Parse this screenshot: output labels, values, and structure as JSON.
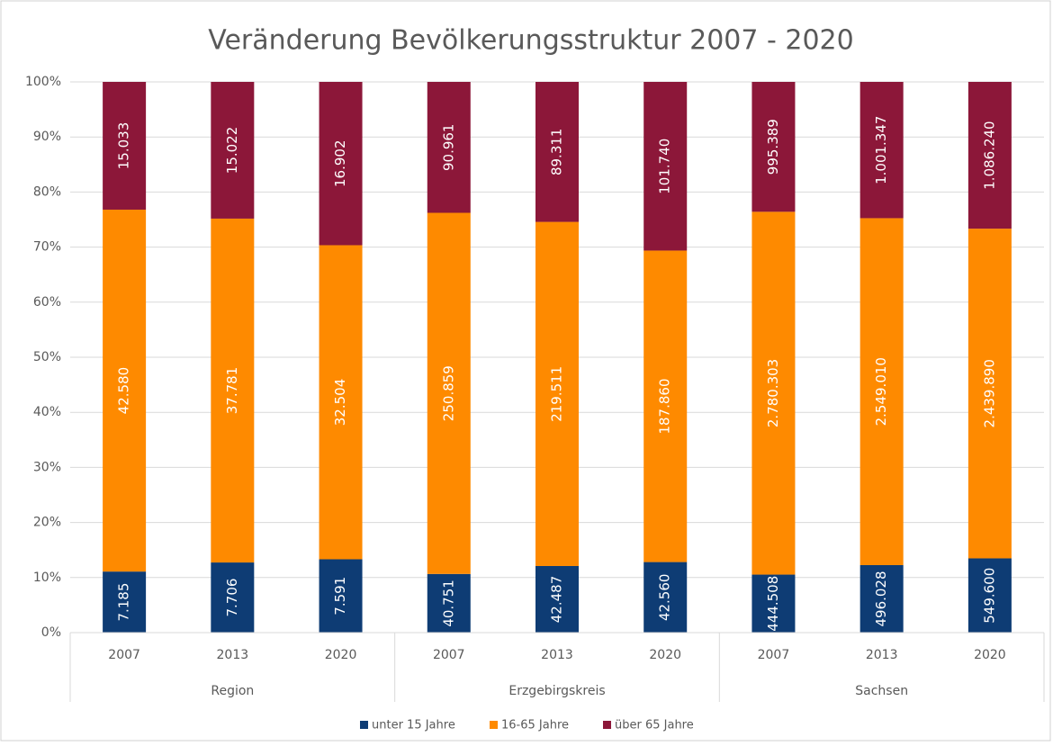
{
  "chart_data": {
    "type": "bar",
    "stacked": "percent",
    "title": "Veränderung Bevölkerungsstruktur 2007 - 2020",
    "categories": [
      "2007",
      "2013",
      "2020",
      "2007",
      "2013",
      "2020",
      "2007",
      "2013",
      "2020"
    ],
    "groups": [
      "Region",
      "Erzgebirgskreis",
      "Sachsen"
    ],
    "series": [
      {
        "name": "unter 15 Jahre",
        "color": "#0e3c74",
        "values": [
          7185,
          7706,
          7591,
          40751,
          42487,
          42560,
          444508,
          496028,
          549600
        ],
        "value_labels": [
          "7.185",
          "7.706",
          "7.591",
          "40.751",
          "42.487",
          "42.560",
          "444.508",
          "496.028",
          "549.600"
        ]
      },
      {
        "name": "16-65 Jahre",
        "color": "#fe8a00",
        "values": [
          42580,
          37781,
          32504,
          250859,
          219511,
          187860,
          2780303,
          2549010,
          2439890
        ],
        "value_labels": [
          "42.580",
          "37.781",
          "32.504",
          "250.859",
          "219.511",
          "187.860",
          "2.780.303",
          "2.549.010",
          "2.439.890"
        ]
      },
      {
        "name": "über 65 Jahre",
        "color": "#8c1739",
        "values": [
          15033,
          15022,
          16902,
          90961,
          89311,
          101740,
          995389,
          1001347,
          1086240
        ],
        "value_labels": [
          "15.033",
          "15.022",
          "16.902",
          "90.961",
          "89.311",
          "101.740",
          "995.389",
          "1.001.347",
          "1.086.240"
        ]
      }
    ],
    "ylim": [
      0,
      100
    ],
    "yticks": [
      {
        "value": 0,
        "label": "0%"
      },
      {
        "value": 10,
        "label": "10%"
      },
      {
        "value": 20,
        "label": "20%"
      },
      {
        "value": 30,
        "label": "30%"
      },
      {
        "value": 40,
        "label": "40%"
      },
      {
        "value": 50,
        "label": "50%"
      },
      {
        "value": 60,
        "label": "60%"
      },
      {
        "value": 70,
        "label": "70%"
      },
      {
        "value": 80,
        "label": "80%"
      },
      {
        "value": 90,
        "label": "90%"
      },
      {
        "value": 100,
        "label": "100%"
      }
    ],
    "grid": true,
    "legend": "bottom"
  }
}
